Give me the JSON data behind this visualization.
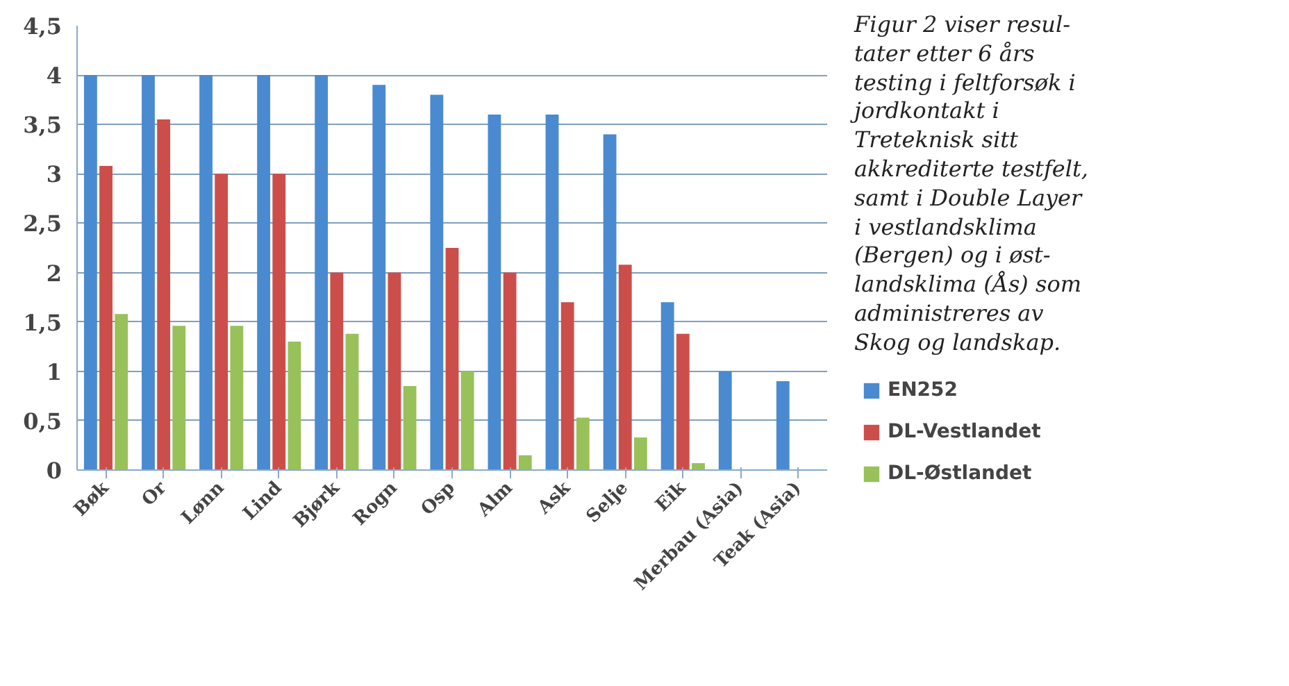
{
  "chart_data": {
    "type": "bar",
    "categories": [
      "Bøk",
      "Or",
      "Lønn",
      "Lind",
      "Bjørk",
      "Rogn",
      "Osp",
      "Alm",
      "Ask",
      "Selje",
      "Eik",
      "Merbau (Asia)",
      "Teak (Asia)"
    ],
    "series": [
      {
        "name": "EN252",
        "color": "#4a8ad0",
        "values": [
          4,
          4,
          4,
          4,
          4,
          3.9,
          3.8,
          3.6,
          3.6,
          3.4,
          1.7,
          1.0,
          0.9
        ]
      },
      {
        "name": "DL-Vestlandet",
        "color": "#cc4e4a",
        "values": [
          3.08,
          3.55,
          3.0,
          3.0,
          2.0,
          2.0,
          2.25,
          2.0,
          1.7,
          2.08,
          1.38,
          null,
          null
        ]
      },
      {
        "name": "DL-Østlandet",
        "color": "#98c15a",
        "values": [
          1.58,
          1.46,
          1.46,
          1.3,
          1.38,
          0.85,
          1.0,
          0.15,
          0.53,
          0.33,
          0.07,
          null,
          null
        ]
      }
    ],
    "ylim": [
      0,
      4.5
    ],
    "yticks": [
      0,
      {
        "value": 0.5,
        "label": "0,5"
      },
      1,
      {
        "value": 1.5,
        "label": "1,5"
      },
      2,
      {
        "value": 2.5,
        "label": "2,5"
      },
      3,
      {
        "value": 3.5,
        "label": "3,5"
      },
      4,
      {
        "value": 4.5,
        "label": "4,5"
      }
    ],
    "grid": "y",
    "legend": "right",
    "annotations": [
      "Figur 2 viser resul-\ntater etter 6 års\ntesting i feltforsøk i\njordkontakt i\nTreteknisk sitt\nakkrediterte testfelt,\nsamt i Double Layer\ni vestlandsklima\n(Bergen) og i øst-\nlandsklima (Ås) som\nadministreres av\nSkog og landskap."
    ]
  }
}
